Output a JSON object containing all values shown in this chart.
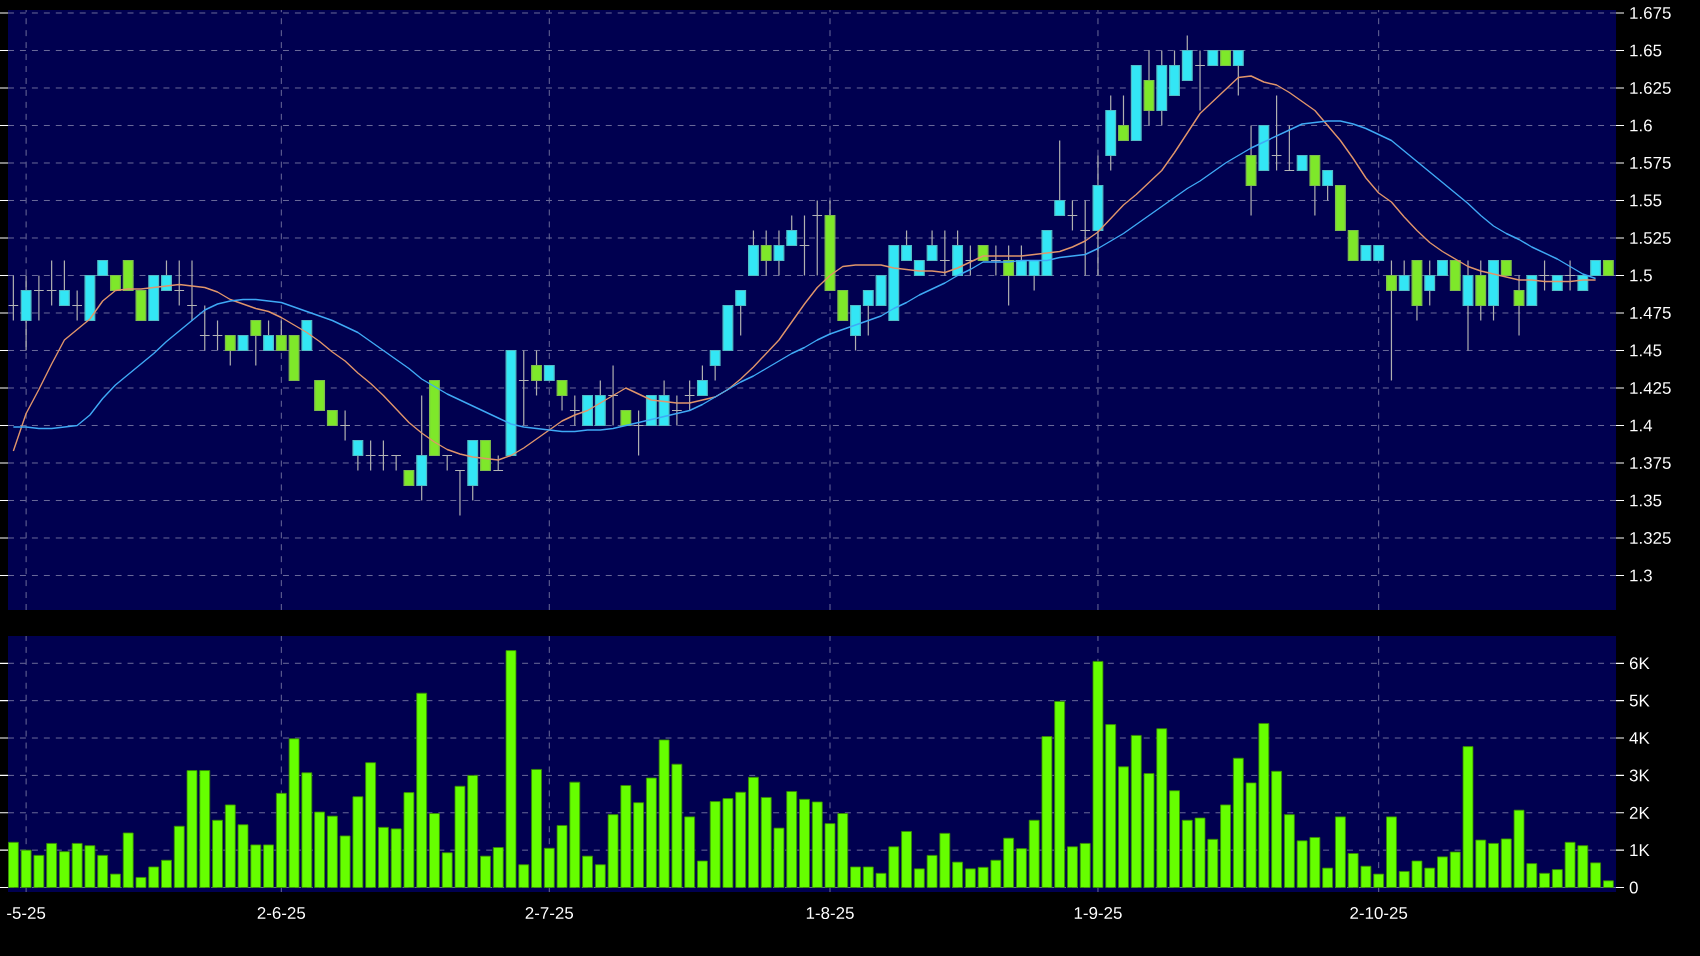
{
  "chart_data": [
    {
      "type": "candlestick",
      "categories": [
        null,
        null,
        null,
        null,
        null,
        null,
        null,
        null,
        null,
        null,
        null,
        null,
        null,
        null,
        null,
        null,
        null,
        null,
        null,
        null,
        null,
        null,
        null,
        null,
        null,
        null,
        null,
        null,
        null,
        null,
        null,
        null,
        null,
        null,
        null,
        null,
        null,
        null,
        null,
        null,
        null,
        null,
        null,
        null,
        null,
        null,
        null,
        null,
        null,
        null,
        null,
        null,
        null,
        null,
        null,
        null,
        null,
        null,
        null,
        null,
        null,
        null,
        null,
        null,
        null,
        null,
        null,
        null,
        null,
        null,
        null,
        null,
        null,
        null,
        null,
        null,
        null,
        null,
        null,
        null,
        null,
        null,
        null,
        null,
        null,
        null,
        null,
        null,
        null,
        null,
        null,
        null,
        null,
        null,
        null,
        null,
        null,
        null,
        null,
        null,
        null,
        null,
        null,
        null,
        null,
        null,
        null,
        null,
        null,
        null,
        null,
        null,
        null,
        null,
        null,
        null,
        null,
        null,
        null,
        null,
        null,
        null,
        null,
        null,
        null,
        null
      ],
      "ohlc": [
        [
          1.48,
          1.5,
          1.47,
          1.48
        ],
        [
          1.47,
          1.5,
          1.45,
          1.49
        ],
        [
          1.49,
          1.5,
          1.47,
          1.49
        ],
        [
          1.49,
          1.51,
          1.48,
          1.49
        ],
        [
          1.48,
          1.51,
          1.48,
          1.49
        ],
        [
          1.48,
          1.49,
          1.47,
          1.48
        ],
        [
          1.47,
          1.5,
          1.47,
          1.5
        ],
        [
          1.5,
          1.51,
          1.5,
          1.51
        ],
        [
          1.5,
          1.5,
          1.49,
          1.49
        ],
        [
          1.51,
          1.51,
          1.49,
          1.49
        ],
        [
          1.49,
          1.49,
          1.47,
          1.47
        ],
        [
          1.47,
          1.5,
          1.47,
          1.5
        ],
        [
          1.49,
          1.51,
          1.49,
          1.5
        ],
        [
          1.49,
          1.51,
          1.48,
          1.49
        ],
        [
          1.48,
          1.51,
          1.47,
          1.48
        ],
        [
          1.46,
          1.48,
          1.45,
          1.46
        ],
        [
          1.46,
          1.47,
          1.45,
          1.46
        ],
        [
          1.46,
          1.46,
          1.44,
          1.45
        ],
        [
          1.45,
          1.46,
          1.45,
          1.46
        ],
        [
          1.47,
          1.47,
          1.44,
          1.46
        ],
        [
          1.45,
          1.47,
          1.45,
          1.46
        ],
        [
          1.46,
          1.47,
          1.45,
          1.45
        ],
        [
          1.46,
          1.46,
          1.43,
          1.43
        ],
        [
          1.45,
          1.47,
          1.45,
          1.47
        ],
        [
          1.43,
          1.43,
          1.41,
          1.41
        ],
        [
          1.41,
          1.41,
          1.4,
          1.4
        ],
        [
          1.4,
          1.41,
          1.39,
          1.4
        ],
        [
          1.38,
          1.39,
          1.37,
          1.39
        ],
        [
          1.38,
          1.39,
          1.37,
          1.38
        ],
        [
          1.38,
          1.39,
          1.37,
          1.38
        ],
        [
          1.38,
          1.38,
          1.37,
          1.38
        ],
        [
          1.37,
          1.37,
          1.36,
          1.36
        ],
        [
          1.36,
          1.42,
          1.35,
          1.38
        ],
        [
          1.43,
          1.43,
          1.38,
          1.38
        ],
        [
          1.38,
          1.38,
          1.37,
          1.38
        ],
        [
          1.37,
          1.37,
          1.34,
          1.37
        ],
        [
          1.36,
          1.39,
          1.35,
          1.39
        ],
        [
          1.39,
          1.39,
          1.37,
          1.37
        ],
        [
          1.37,
          1.38,
          1.37,
          1.37
        ],
        [
          1.38,
          1.45,
          1.38,
          1.45
        ],
        [
          1.43,
          1.45,
          1.4,
          1.43
        ],
        [
          1.44,
          1.45,
          1.42,
          1.43
        ],
        [
          1.43,
          1.44,
          1.43,
          1.44
        ],
        [
          1.43,
          1.43,
          1.41,
          1.42
        ],
        [
          1.41,
          1.42,
          1.4,
          1.41
        ],
        [
          1.4,
          1.42,
          1.4,
          1.42
        ],
        [
          1.4,
          1.43,
          1.4,
          1.42
        ],
        [
          1.42,
          1.44,
          1.4,
          1.42
        ],
        [
          1.41,
          1.41,
          1.4,
          1.4
        ],
        [
          1.4,
          1.41,
          1.38,
          1.4
        ],
        [
          1.4,
          1.42,
          1.4,
          1.42
        ],
        [
          1.4,
          1.43,
          1.4,
          1.42
        ],
        [
          1.41,
          1.42,
          1.4,
          1.41
        ],
        [
          1.42,
          1.43,
          1.41,
          1.42
        ],
        [
          1.42,
          1.44,
          1.42,
          1.43
        ],
        [
          1.44,
          1.45,
          1.43,
          1.45
        ],
        [
          1.45,
          1.48,
          1.45,
          1.48
        ],
        [
          1.48,
          1.49,
          1.46,
          1.49
        ],
        [
          1.5,
          1.53,
          1.5,
          1.52
        ],
        [
          1.52,
          1.53,
          1.5,
          1.51
        ],
        [
          1.51,
          1.53,
          1.5,
          1.52
        ],
        [
          1.52,
          1.54,
          1.52,
          1.53
        ],
        [
          1.52,
          1.54,
          1.5,
          1.52
        ],
        [
          1.54,
          1.55,
          1.5,
          1.54
        ],
        [
          1.54,
          1.55,
          1.49,
          1.49
        ],
        [
          1.49,
          1.49,
          1.47,
          1.47
        ],
        [
          1.46,
          1.48,
          1.45,
          1.48
        ],
        [
          1.48,
          1.49,
          1.46,
          1.49
        ],
        [
          1.48,
          1.5,
          1.48,
          1.5
        ],
        [
          1.47,
          1.52,
          1.47,
          1.52
        ],
        [
          1.51,
          1.53,
          1.51,
          1.52
        ],
        [
          1.5,
          1.51,
          1.5,
          1.51
        ],
        [
          1.51,
          1.53,
          1.51,
          1.52
        ],
        [
          1.51,
          1.53,
          1.5,
          1.51
        ],
        [
          1.5,
          1.53,
          1.5,
          1.52
        ],
        [
          1.51,
          1.52,
          1.5,
          1.51
        ],
        [
          1.52,
          1.52,
          1.51,
          1.51
        ],
        [
          1.51,
          1.52,
          1.5,
          1.51
        ],
        [
          1.51,
          1.52,
          1.48,
          1.5
        ],
        [
          1.5,
          1.52,
          1.5,
          1.51
        ],
        [
          1.5,
          1.51,
          1.49,
          1.51
        ],
        [
          1.5,
          1.53,
          1.5,
          1.53
        ],
        [
          1.54,
          1.59,
          1.54,
          1.55
        ],
        [
          1.54,
          1.55,
          1.53,
          1.54
        ],
        [
          1.53,
          1.55,
          1.5,
          1.53
        ],
        [
          1.53,
          1.58,
          1.5,
          1.56
        ],
        [
          1.58,
          1.62,
          1.57,
          1.61
        ],
        [
          1.6,
          1.62,
          1.59,
          1.59
        ],
        [
          1.59,
          1.64,
          1.59,
          1.64
        ],
        [
          1.63,
          1.65,
          1.6,
          1.61
        ],
        [
          1.61,
          1.65,
          1.6,
          1.64
        ],
        [
          1.62,
          1.65,
          1.62,
          1.64
        ],
        [
          1.63,
          1.66,
          1.63,
          1.65
        ],
        [
          1.64,
          1.65,
          1.61,
          1.64
        ],
        [
          1.64,
          1.65,
          1.64,
          1.65
        ],
        [
          1.65,
          1.65,
          1.64,
          1.64
        ],
        [
          1.64,
          1.65,
          1.62,
          1.65
        ],
        [
          1.58,
          1.6,
          1.54,
          1.56
        ],
        [
          1.57,
          1.6,
          1.57,
          1.6
        ],
        [
          1.58,
          1.62,
          1.57,
          1.58
        ],
        [
          1.57,
          1.6,
          1.57,
          1.57
        ],
        [
          1.57,
          1.58,
          1.57,
          1.58
        ],
        [
          1.58,
          1.58,
          1.54,
          1.56
        ],
        [
          1.56,
          1.57,
          1.55,
          1.57
        ],
        [
          1.56,
          1.56,
          1.53,
          1.53
        ],
        [
          1.53,
          1.53,
          1.51,
          1.51
        ],
        [
          1.51,
          1.52,
          1.51,
          1.52
        ],
        [
          1.51,
          1.52,
          1.51,
          1.52
        ],
        [
          1.5,
          1.51,
          1.43,
          1.49
        ],
        [
          1.49,
          1.51,
          1.49,
          1.5
        ],
        [
          1.51,
          1.51,
          1.47,
          1.48
        ],
        [
          1.49,
          1.51,
          1.48,
          1.5
        ],
        [
          1.5,
          1.51,
          1.5,
          1.51
        ],
        [
          1.51,
          1.51,
          1.49,
          1.49
        ],
        [
          1.48,
          1.51,
          1.45,
          1.5
        ],
        [
          1.5,
          1.51,
          1.47,
          1.48
        ],
        [
          1.48,
          1.51,
          1.47,
          1.51
        ],
        [
          1.51,
          1.51,
          1.5,
          1.5
        ],
        [
          1.49,
          1.5,
          1.46,
          1.48
        ],
        [
          1.48,
          1.5,
          1.48,
          1.5
        ],
        [
          1.5,
          1.51,
          1.49,
          1.5
        ],
        [
          1.49,
          1.5,
          1.49,
          1.5
        ],
        [
          1.5,
          1.51,
          1.49,
          1.5
        ],
        [
          1.49,
          1.5,
          1.49,
          1.5
        ],
        [
          1.5,
          1.51,
          1.5,
          1.51
        ],
        [
          1.51,
          1.51,
          1.5,
          1.5
        ]
      ],
      "colors": [
        "#b4b4b4",
        "#33e6f5",
        "#b4b4b4",
        "#b4b4b4",
        "#33e6f5",
        "#b4b4b4",
        "#33e6f5",
        "#33e6f5",
        "#7ee82a",
        "#7ee82a",
        "#7ee82a",
        "#33e6f5",
        "#33e6f5",
        "#b4b4b4",
        "#b4b4b4",
        "#b4b4b4",
        "#b4b4b4",
        "#7ee82a",
        "#33e6f5",
        "#7ee82a",
        "#33e6f5",
        "#7ee82a",
        "#7ee82a",
        "#33e6f5",
        "#7ee82a",
        "#7ee82a",
        "#b4b4b4",
        "#33e6f5",
        "#b4b4b4",
        "#b4b4b4",
        "#b4b4b4",
        "#7ee82a",
        "#33e6f5",
        "#7ee82a",
        "#b4b4b4",
        "#b4b4b4",
        "#33e6f5",
        "#7ee82a",
        "#b4b4b4",
        "#33e6f5",
        "#b4b4b4",
        "#7ee82a",
        "#33e6f5",
        "#7ee82a",
        "#b4b4b4",
        "#33e6f5",
        "#33e6f5",
        "#b4b4b4",
        "#7ee82a",
        "#b4b4b4",
        "#33e6f5",
        "#33e6f5",
        "#b4b4b4",
        "#b4b4b4",
        "#33e6f5",
        "#33e6f5",
        "#33e6f5",
        "#33e6f5",
        "#33e6f5",
        "#7ee82a",
        "#33e6f5",
        "#33e6f5",
        "#b4b4b4",
        "#b4b4b4",
        "#7ee82a",
        "#7ee82a",
        "#33e6f5",
        "#33e6f5",
        "#33e6f5",
        "#33e6f5",
        "#33e6f5",
        "#33e6f5",
        "#33e6f5",
        "#b4b4b4",
        "#33e6f5",
        "#b4b4b4",
        "#7ee82a",
        "#b4b4b4",
        "#7ee82a",
        "#33e6f5",
        "#33e6f5",
        "#33e6f5",
        "#33e6f5",
        "#b4b4b4",
        "#b4b4b4",
        "#33e6f5",
        "#33e6f5",
        "#7ee82a",
        "#33e6f5",
        "#7ee82a",
        "#33e6f5",
        "#33e6f5",
        "#33e6f5",
        "#b4b4b4",
        "#33e6f5",
        "#7ee82a",
        "#33e6f5",
        "#7ee82a",
        "#33e6f5",
        "#b4b4b4",
        "#b4b4b4",
        "#33e6f5",
        "#7ee82a",
        "#33e6f5",
        "#7ee82a",
        "#7ee82a",
        "#33e6f5",
        "#33e6f5",
        "#7ee82a",
        "#33e6f5",
        "#7ee82a",
        "#33e6f5",
        "#33e6f5",
        "#7ee82a",
        "#33e6f5",
        "#7ee82a",
        "#33e6f5",
        "#7ee82a",
        "#7ee82a",
        "#33e6f5",
        "#b4b4b4",
        "#33e6f5",
        "#b4b4b4",
        "#33e6f5",
        "#33e6f5",
        "#7ee82a"
      ],
      "series": [
        {
          "type": "line",
          "color": "#e0956b",
          "values": [
            1.383,
            1.408,
            1.424,
            1.441,
            1.457,
            1.464,
            1.471,
            1.483,
            1.49,
            1.491,
            1.491,
            1.492,
            1.493,
            1.494,
            1.493,
            1.492,
            1.489,
            1.484,
            1.481,
            1.478,
            1.476,
            1.472,
            1.467,
            1.462,
            1.456,
            1.449,
            1.443,
            1.435,
            1.428,
            1.42,
            1.411,
            1.402,
            1.395,
            1.389,
            1.384,
            1.381,
            1.379,
            1.378,
            1.377,
            1.38,
            1.385,
            1.391,
            1.397,
            1.403,
            1.407,
            1.41,
            1.415,
            1.42,
            1.425,
            1.421,
            1.417,
            1.416,
            1.415,
            1.415,
            1.417,
            1.419,
            1.424,
            1.431,
            1.439,
            1.448,
            1.457,
            1.469,
            1.481,
            1.492,
            1.5,
            1.506,
            1.507,
            1.507,
            1.507,
            1.505,
            1.504,
            1.503,
            1.503,
            1.502,
            1.505,
            1.509,
            1.513,
            1.513,
            1.513,
            1.513,
            1.514,
            1.515,
            1.516,
            1.519,
            1.523,
            1.529,
            1.538,
            1.547,
            1.554,
            1.562,
            1.57,
            1.582,
            1.595,
            1.608,
            1.616,
            1.624,
            1.632,
            1.633,
            1.629,
            1.627,
            1.622,
            1.616,
            1.61,
            1.6,
            1.59,
            1.578,
            1.565,
            1.555,
            1.549,
            1.539,
            1.53,
            1.522,
            1.516,
            1.511,
            1.506,
            1.503,
            1.501,
            1.499,
            1.497,
            1.497,
            1.496,
            1.496,
            1.496,
            1.497,
            1.497,
            null
          ]
        },
        {
          "type": "line",
          "color": "#3fa9f5",
          "values": [
            1.399,
            1.399,
            1.398,
            1.398,
            1.399,
            1.4,
            1.407,
            1.418,
            1.427,
            1.434,
            1.441,
            1.448,
            1.456,
            1.463,
            1.47,
            1.477,
            1.481,
            1.483,
            1.484,
            1.484,
            1.483,
            1.482,
            1.479,
            1.476,
            1.473,
            1.47,
            1.466,
            1.462,
            1.456,
            1.45,
            1.444,
            1.438,
            1.431,
            1.426,
            1.421,
            1.417,
            1.413,
            1.409,
            1.405,
            1.401,
            1.399,
            1.398,
            1.397,
            1.396,
            1.396,
            1.397,
            1.397,
            1.398,
            1.4,
            1.402,
            1.404,
            1.406,
            1.408,
            1.41,
            1.414,
            1.419,
            1.424,
            1.429,
            1.433,
            1.438,
            1.443,
            1.448,
            1.452,
            1.457,
            1.461,
            1.464,
            1.467,
            1.47,
            1.473,
            1.478,
            1.482,
            1.487,
            1.491,
            1.495,
            1.5,
            1.504,
            1.509,
            1.509,
            1.509,
            1.51,
            1.51,
            1.51,
            1.512,
            1.513,
            1.514,
            1.518,
            1.523,
            1.528,
            1.534,
            1.54,
            1.546,
            1.552,
            1.558,
            1.563,
            1.569,
            1.575,
            1.58,
            1.585,
            1.589,
            1.593,
            1.597,
            1.601,
            1.602,
            1.603,
            1.603,
            1.601,
            1.598,
            1.594,
            1.59,
            1.583,
            1.576,
            1.569,
            1.562,
            1.555,
            1.548,
            1.54,
            1.533,
            1.528,
            1.524,
            1.519,
            1.515,
            1.511,
            1.506,
            1.501,
            1.498,
            null
          ]
        }
      ],
      "ylim": [
        1.277,
        1.677
      ],
      "yticks": [
        1.3,
        1.325,
        1.35,
        1.375,
        1.4,
        1.425,
        1.45,
        1.475,
        1.5,
        1.525,
        1.55,
        1.575,
        1.6,
        1.625,
        1.65,
        1.675
      ],
      "grid": true,
      "tick_labels": "y"
    },
    {
      "type": "bar",
      "categories": [
        null,
        "-5-25",
        null,
        null,
        null,
        null,
        null,
        null,
        null,
        null,
        null,
        null,
        null,
        null,
        null,
        null,
        null,
        null,
        null,
        null,
        null,
        "2-6-25",
        null,
        null,
        null,
        null,
        null,
        null,
        null,
        null,
        null,
        null,
        null,
        null,
        null,
        null,
        null,
        null,
        null,
        null,
        null,
        null,
        "2-7-25",
        null,
        null,
        null,
        null,
        null,
        null,
        null,
        null,
        null,
        null,
        null,
        null,
        null,
        null,
        null,
        null,
        null,
        null,
        null,
        null,
        null,
        "1-8-25",
        null,
        null,
        null,
        null,
        null,
        null,
        null,
        null,
        null,
        null,
        null,
        null,
        null,
        null,
        null,
        null,
        null,
        null,
        null,
        null,
        "1-9-25",
        null,
        null,
        null,
        null,
        null,
        null,
        null,
        null,
        null,
        null,
        null,
        null,
        null,
        null,
        null,
        null,
        null,
        null,
        null,
        null,
        null,
        "2-10-25",
        null,
        null,
        null,
        null,
        null,
        null,
        null,
        null,
        null,
        null,
        null,
        null,
        null,
        null,
        null,
        null,
        null,
        null
      ],
      "values": [
        1210,
        1000,
        860,
        1180,
        960,
        1180,
        1120,
        860,
        360,
        1460,
        270,
        550,
        730,
        1640,
        3130,
        3130,
        1800,
        2210,
        1680,
        1140,
        1140,
        2520,
        3980,
        3070,
        2020,
        1910,
        1380,
        2430,
        3340,
        1610,
        1570,
        2540,
        5200,
        1980,
        930,
        2710,
        3000,
        840,
        1070,
        6340,
        610,
        3160,
        1050,
        1660,
        2820,
        840,
        610,
        1950,
        2730,
        2270,
        2930,
        3950,
        3300,
        1890,
        710,
        2300,
        2380,
        2550,
        2950,
        2410,
        1590,
        2570,
        2360,
        2290,
        1710,
        1980,
        550,
        550,
        380,
        1090,
        1500,
        500,
        860,
        1450,
        680,
        500,
        540,
        730,
        1320,
        1040,
        1800,
        4040,
        4980,
        1090,
        1180,
        6050,
        4360,
        3230,
        4070,
        3050,
        4250,
        2590,
        1800,
        1860,
        1290,
        2210,
        3460,
        2800,
        4390,
        3110,
        1950,
        1250,
        1340,
        520,
        1890,
        910,
        570,
        360,
        1890,
        430,
        710,
        520,
        820,
        950,
        3770,
        1270,
        1180,
        1300,
        2070,
        640,
        380,
        480,
        1210,
        1120,
        660,
        180
      ],
      "color": "#66ff00",
      "ylim": [
        -120,
        6730
      ],
      "yticks": [
        0,
        {
          "value": 1000,
          "label": "1K"
        },
        {
          "value": 2000,
          "label": "2K"
        },
        {
          "value": 3000,
          "label": "3K"
        },
        {
          "value": 4000,
          "label": "4K"
        },
        {
          "value": 5000,
          "label": "5K"
        },
        {
          "value": 6000,
          "label": "6K"
        }
      ],
      "grid": true
    }
  ]
}
